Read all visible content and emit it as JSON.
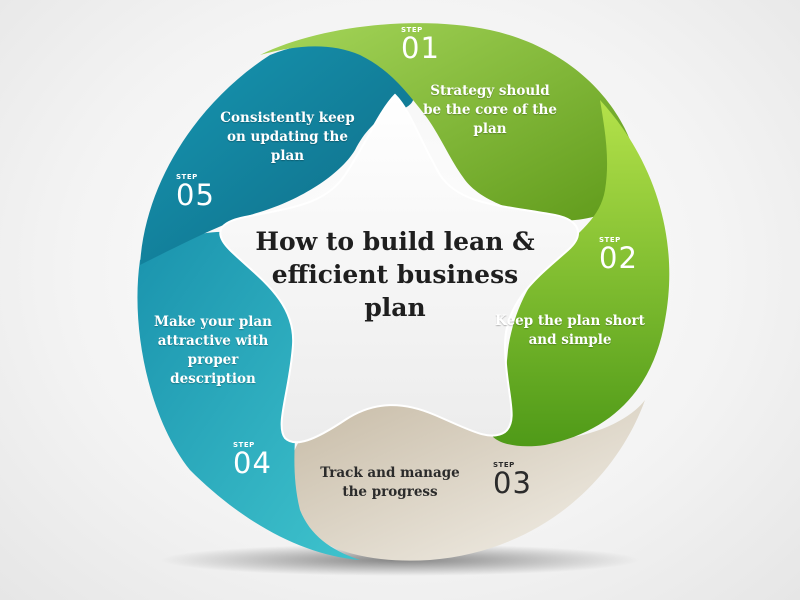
{
  "title": "How to build lean & efficient business plan",
  "steps": [
    {
      "word": "STEP",
      "number": "01",
      "text": "Strategy should be the core of the plan",
      "color": "#8cc63f"
    },
    {
      "word": "STEP",
      "number": "02",
      "text": "Keep the plan short and simple",
      "color": "#8dc63f"
    },
    {
      "word": "STEP",
      "number": "03",
      "text": "Track and manage the progress",
      "color": "#d8cfc0"
    },
    {
      "word": "STEP",
      "number": "04",
      "text": "Make your plan attractive with proper description",
      "color": "#2fb6c4"
    },
    {
      "word": "STEP",
      "number": "05",
      "text": "Consistently keep on updating the plan",
      "color": "#1687a7"
    }
  ]
}
